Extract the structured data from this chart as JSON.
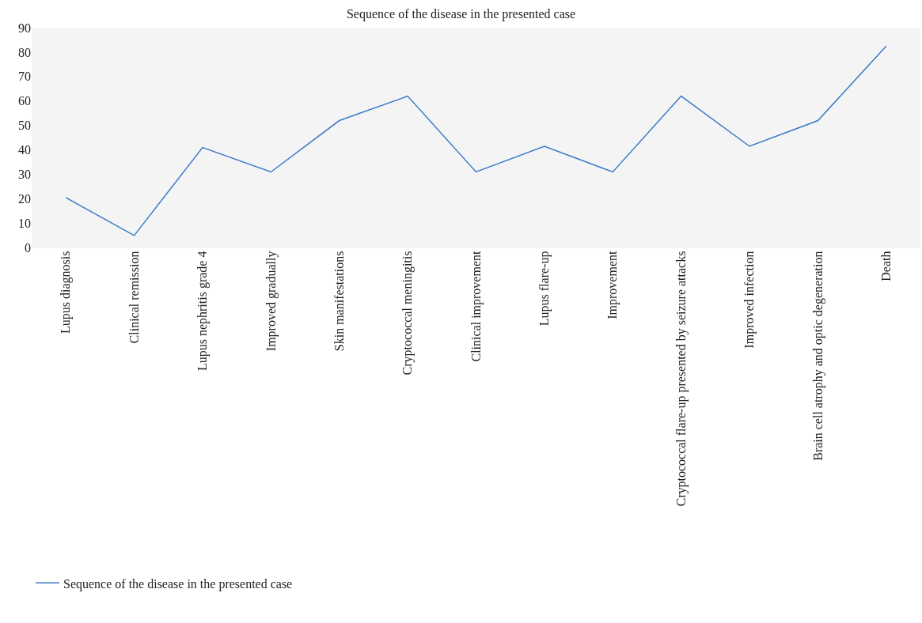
{
  "chart_data": {
    "type": "line",
    "title": "Sequence of the disease in the presented case",
    "categories": [
      "Lupus diagnosis",
      "Clinical remission",
      "Lupus nephritis grade 4",
      "Improved gradually",
      "Skin manifestations",
      "Cryptococcal meningitis",
      "Clinical improvement",
      "Lupus flare-up",
      "Improvement",
      "Cryptococcal flare-up presented by seizure attacks",
      "Improved infection",
      "Brain cell atrophy and optic degeneration",
      "Death"
    ],
    "series": [
      {
        "name": "Sequence of the disease in the presented case",
        "color": "#3a7bc8",
        "values": [
          20.5,
          5,
          41,
          31,
          52,
          62,
          31,
          41.5,
          31,
          62,
          41.5,
          52,
          82.5
        ]
      }
    ],
    "ylim": [
      0,
      90
    ],
    "yticks": [
      0,
      10,
      20,
      30,
      40,
      50,
      60,
      70,
      80,
      90
    ],
    "grid": false,
    "legend": "bottom left",
    "marker": "none",
    "line_style": "solid"
  }
}
